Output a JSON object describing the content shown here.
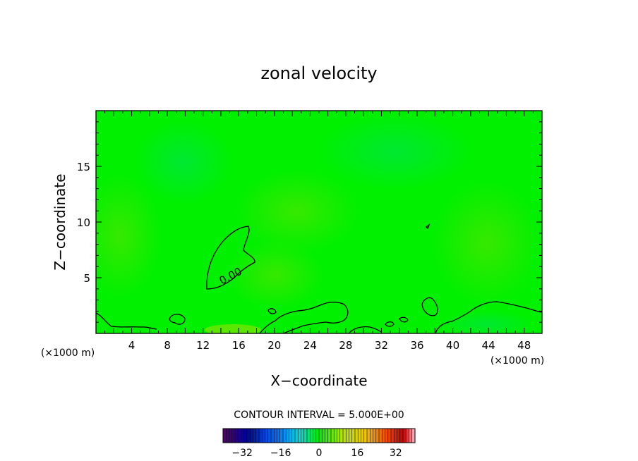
{
  "chart_data": {
    "type": "heatmap",
    "title": "zonal velocity",
    "xlabel": "X−coordinate",
    "ylabel": "Z−coordinate",
    "x_unit": "(×1000 m)",
    "z_unit": "(×1000 m)",
    "xlim": [
      0,
      50
    ],
    "ylim": [
      0,
      20
    ],
    "x_ticks": [
      4,
      8,
      12,
      16,
      20,
      24,
      28,
      32,
      36,
      40,
      44,
      48
    ],
    "y_ticks": [
      5,
      10,
      15
    ],
    "contour_label": "0.00",
    "contour_interval_text": "CONTOUR INTERVAL = 5.000E+00",
    "colorbar": {
      "range": [
        -40,
        40
      ],
      "ticks": [
        -32,
        -16,
        0,
        16,
        32
      ],
      "tick_labels": [
        "−32",
        "−16",
        "0",
        "16",
        "32"
      ]
    },
    "colors": {
      "field_base": "#00f000",
      "contour_line": "#000000"
    }
  }
}
